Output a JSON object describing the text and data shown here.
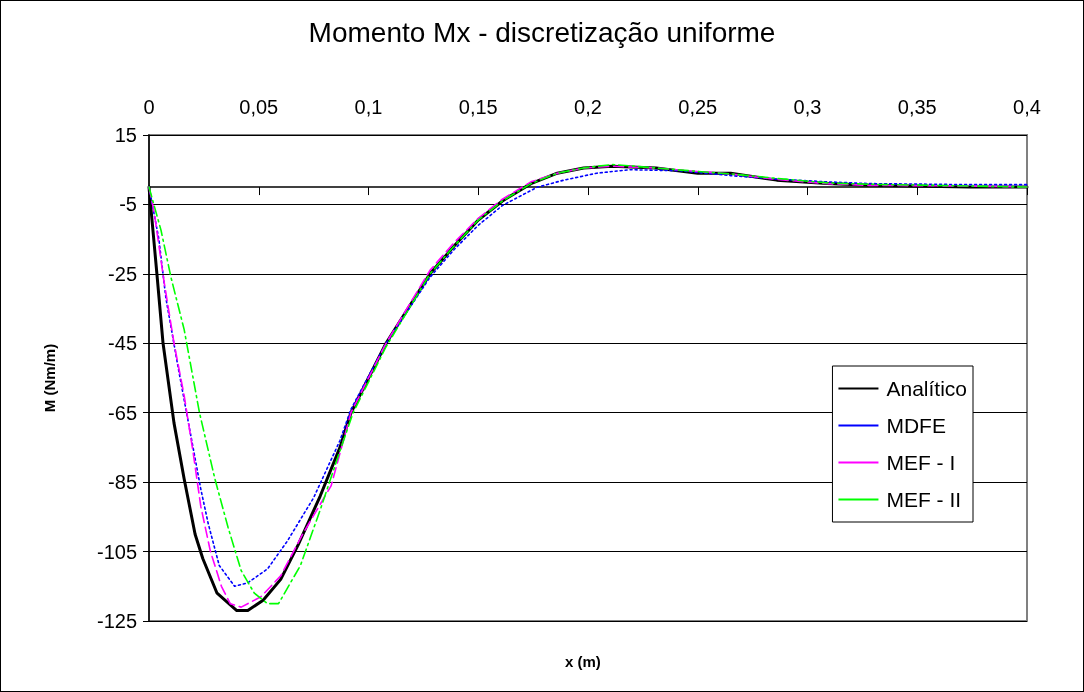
{
  "chart_data": {
    "type": "line",
    "title": "Momento Mx - discretização uniforme",
    "xlabel": "x (m)",
    "ylabel": "M (Nm/m)",
    "xlim": [
      0,
      0.4
    ],
    "xticks": [
      0,
      {
        "value": 0.05,
        "label": "0,05"
      },
      {
        "value": 0.1,
        "label": "0,1"
      },
      {
        "value": 0.15,
        "label": "0,15"
      },
      {
        "value": 0.2,
        "label": "0,2"
      },
      {
        "value": 0.25,
        "label": "0,25"
      },
      {
        "value": 0.3,
        "label": "0,3"
      },
      {
        "value": 0.35,
        "label": "0,35"
      },
      {
        "value": 0.4,
        "label": "0,4"
      }
    ],
    "ylim": [
      -125,
      15
    ],
    "yticks": [
      -125,
      -105,
      -85,
      -65,
      -45,
      -25,
      -5,
      15
    ],
    "grid": "y",
    "legend": "right",
    "series": [
      {
        "name": "Analítico",
        "color": "#000000",
        "line_style": "solid",
        "x": [
          0,
          0.0036,
          0.0064,
          0.0114,
          0.016,
          0.021,
          0.0245,
          0.031,
          0.04,
          0.045,
          0.052,
          0.06,
          0.068,
          0.078,
          0.087,
          0.092,
          0.108,
          0.128,
          0.139,
          0.15,
          0.161,
          0.174,
          0.186,
          0.198,
          0.211,
          0.231,
          0.25,
          0.265,
          0.286,
          0.309,
          0.328,
          0.374,
          0.4
        ],
        "values": [
          0,
          -25,
          -45,
          -68,
          -84,
          -100,
          -107,
          -117,
          -122,
          -122,
          -119,
          -113,
          -103,
          -89,
          -75,
          -65,
          -45,
          -25,
          -17,
          -9.5,
          -4,
          1,
          4,
          5.5,
          6,
          5.5,
          4,
          4,
          2,
          1,
          0.5,
          0,
          0
        ]
      },
      {
        "name": "MDFE",
        "color": "#0000ff",
        "line_style": "dotted",
        "x": [
          0,
          0.0045,
          0.0077,
          0.013,
          0.018,
          0.0236,
          0.027,
          0.032,
          0.039,
          0.045,
          0.054,
          0.063,
          0.075,
          0.087,
          0.092,
          0.108,
          0.128,
          0.139,
          0.15,
          0.161,
          0.177,
          0.189,
          0.204,
          0.219,
          0.242,
          0.265,
          0.286,
          0.309,
          0.328,
          0.374,
          0.4
        ],
        "values": [
          0,
          -15,
          -32,
          -51,
          -68,
          -87,
          -97,
          -109,
          -115,
          -114,
          -110,
          -102,
          -89.5,
          -73,
          -64,
          -45,
          -26,
          -18,
          -11,
          -5.3,
          0,
          2,
          4,
          5,
          4.7,
          3.3,
          2.3,
          1.5,
          1,
          0.7,
          0.7
        ]
      },
      {
        "name": "MEF - I",
        "color": "#ff00ff",
        "line_style": "dashed",
        "x": [
          0,
          0.0023,
          0.0068,
          0.0114,
          0.016,
          0.02,
          0.0236,
          0.028,
          0.033,
          0.037,
          0.042,
          0.051,
          0.06,
          0.07,
          0.083,
          0.092,
          0.108,
          0.128,
          0.139,
          0.15,
          0.161,
          0.174,
          0.186,
          0.198,
          0.211,
          0.231,
          0.25,
          0.265,
          0.286,
          0.309,
          0.328,
          0.374,
          0.4
        ],
        "values": [
          0,
          -7,
          -27,
          -45,
          -60,
          -76,
          -92,
          -105,
          -115,
          -120,
          -121,
          -118,
          -112,
          -100,
          -86,
          -65,
          -45,
          -24,
          -16,
          -9,
          -3.5,
          1.5,
          4,
          5.5,
          6,
          5.5,
          4.5,
          3.8,
          2.2,
          1,
          0.5,
          0.3,
          0
        ]
      },
      {
        "name": "MEF - II",
        "color": "#00ff00",
        "line_style": "dashdot",
        "x": [
          0,
          0.0055,
          0.01,
          0.016,
          0.023,
          0.03,
          0.036,
          0.042,
          0.048,
          0.054,
          0.059,
          0.069,
          0.078,
          0.087,
          0.093,
          0.108,
          0.128,
          0.139,
          0.15,
          0.161,
          0.174,
          0.186,
          0.198,
          0.211,
          0.231,
          0.25,
          0.265,
          0.286,
          0.309,
          0.328,
          0.374,
          0.4
        ],
        "values": [
          0,
          -12.5,
          -26,
          -41,
          -65,
          -84,
          -98,
          -110.5,
          -117,
          -120,
          -120,
          -109,
          -93,
          -76,
          -65,
          -46,
          -25,
          -17,
          -9.5,
          -4,
          1,
          4,
          5.5,
          6.5,
          5.5,
          4.5,
          3.8,
          2.5,
          1.2,
          0.8,
          0.3,
          0
        ]
      }
    ]
  }
}
